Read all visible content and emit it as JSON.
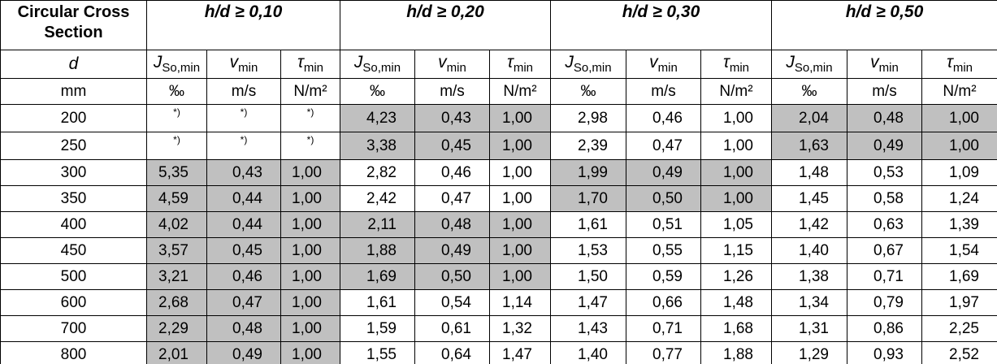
{
  "table": {
    "corner": "Circular Cross Section",
    "groups": [
      "h/d ≥ 0,10",
      "h/d ≥ 0,20",
      "h/d ≥ 0,30",
      "h/d ≥ 0,50"
    ],
    "first_column_symbol": "d",
    "first_column_unit": "mm",
    "columns": [
      {
        "symbol": "J",
        "sub": "So,min",
        "unit": "‰"
      },
      {
        "symbol": "v",
        "sub": "min",
        "unit": "m/s"
      },
      {
        "symbol": "τ",
        "sub": "min",
        "unit": "N/m²"
      }
    ],
    "rows": [
      {
        "d": "200",
        "cells": [
          "*)",
          "*)",
          "*)",
          "4,23",
          "0,43",
          "1,00",
          "2,98",
          "0,46",
          "1,00",
          "2,04",
          "0,48",
          "1,00"
        ],
        "shaded": [
          false,
          true,
          false,
          true
        ]
      },
      {
        "d": "250",
        "cells": [
          "*)",
          "*)",
          "*)",
          "3,38",
          "0,45",
          "1,00",
          "2,39",
          "0,47",
          "1,00",
          "1,63",
          "0,49",
          "1,00"
        ],
        "shaded": [
          false,
          true,
          false,
          true
        ]
      },
      {
        "d": "300",
        "cells": [
          "5,35",
          "0,43",
          "1,00",
          "2,82",
          "0,46",
          "1,00",
          "1,99",
          "0,49",
          "1,00",
          "1,48",
          "0,53",
          "1,09"
        ],
        "shaded": [
          true,
          false,
          true,
          false
        ]
      },
      {
        "d": "350",
        "cells": [
          "4,59",
          "0,44",
          "1,00",
          "2,42",
          "0,47",
          "1,00",
          "1,70",
          "0,50",
          "1,00",
          "1,45",
          "0,58",
          "1,24"
        ],
        "shaded": [
          true,
          false,
          true,
          false
        ]
      },
      {
        "d": "400",
        "cells": [
          "4,02",
          "0,44",
          "1,00",
          "2,11",
          "0,48",
          "1,00",
          "1,61",
          "0,51",
          "1,05",
          "1,42",
          "0,63",
          "1,39"
        ],
        "shaded": [
          true,
          true,
          false,
          false
        ]
      },
      {
        "d": "450",
        "cells": [
          "3,57",
          "0,45",
          "1,00",
          "1,88",
          "0,49",
          "1,00",
          "1,53",
          "0,55",
          "1,15",
          "1,40",
          "0,67",
          "1,54"
        ],
        "shaded": [
          true,
          true,
          false,
          false
        ]
      },
      {
        "d": "500",
        "cells": [
          "3,21",
          "0,46",
          "1,00",
          "1,69",
          "0,50",
          "1,00",
          "1,50",
          "0,59",
          "1,26",
          "1,38",
          "0,71",
          "1,69"
        ],
        "shaded": [
          true,
          true,
          false,
          false
        ]
      },
      {
        "d": "600",
        "cells": [
          "2,68",
          "0,47",
          "1,00",
          "1,61",
          "0,54",
          "1,14",
          "1,47",
          "0,66",
          "1,48",
          "1,34",
          "0,79",
          "1,97"
        ],
        "shaded": [
          true,
          false,
          false,
          false
        ]
      },
      {
        "d": "700",
        "cells": [
          "2,29",
          "0,48",
          "1,00",
          "1,59",
          "0,61",
          "1,32",
          "1,43",
          "0,71",
          "1,68",
          "1,31",
          "0,86",
          "2,25"
        ],
        "shaded": [
          true,
          false,
          false,
          false
        ]
      },
      {
        "d": "800",
        "cells": [
          "2,01",
          "0,49",
          "1,00",
          "1,55",
          "0,64",
          "1,47",
          "1,40",
          "0,77",
          "1,88",
          "1,29",
          "0,93",
          "2,52"
        ],
        "shaded": [
          true,
          false,
          false,
          false
        ]
      }
    ]
  }
}
